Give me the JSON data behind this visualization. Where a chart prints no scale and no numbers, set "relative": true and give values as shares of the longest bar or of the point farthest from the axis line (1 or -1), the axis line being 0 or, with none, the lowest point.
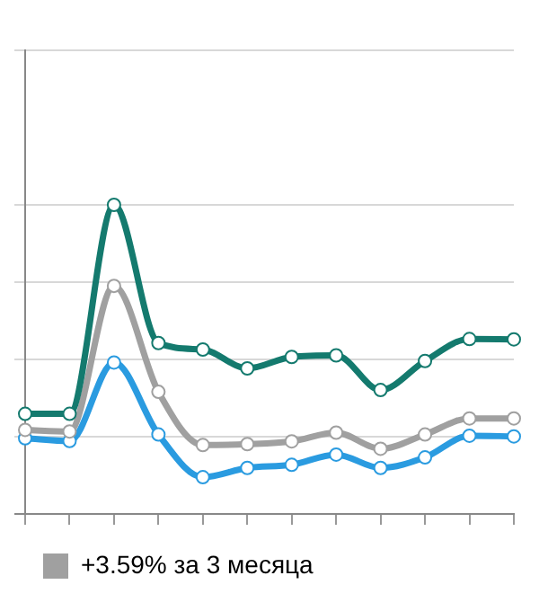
{
  "chart_data": {
    "type": "line",
    "relative": true,
    "categories": [
      null,
      null,
      null,
      null,
      null,
      null,
      null,
      null,
      null,
      null,
      null,
      null
    ],
    "series": [
      {
        "color": "#147a6e",
        "values": [
          0.324,
          0.324,
          1,
          0.553,
          0.532,
          0.471,
          0.508,
          0.513,
          0.401,
          0.495,
          0.566,
          0.565
        ]
      },
      {
        "name": "+3.59% за 3 месяца",
        "color": "#a0a0a0",
        "values": [
          0.272,
          0.267,
          0.738,
          0.395,
          0.223,
          0.226,
          0.235,
          0.263,
          0.211,
          0.257,
          0.309,
          0.309
        ]
      },
      {
        "color": "#2a9be0",
        "values": [
          0.245,
          0.236,
          0.49,
          0.257,
          0.119,
          0.149,
          0.159,
          0.192,
          0.149,
          0.183,
          0.253,
          0.251
        ]
      }
    ],
    "grid": "y",
    "legend": "bottom left",
    "marker": "circle",
    "line_style": "solid",
    "tick_labels": false
  }
}
